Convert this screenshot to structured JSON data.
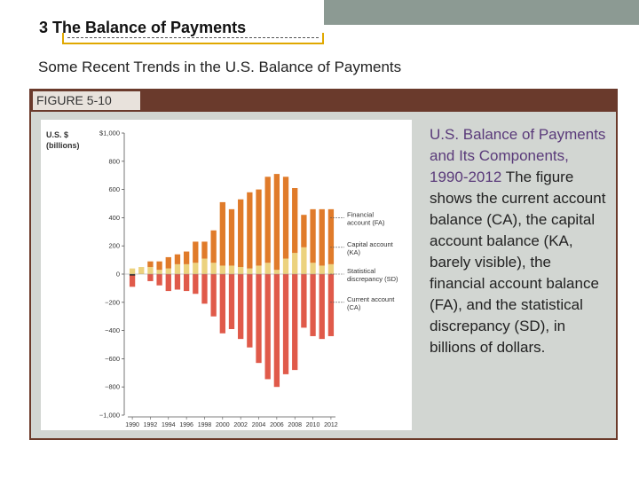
{
  "header": {
    "title": "3 The Balance of Payments",
    "subtitle": "Some Recent Trends in the U.S. Balance of Payments"
  },
  "figure": {
    "tab_label": "FIGURE 5-10",
    "caption_lead": "U.S. Balance of Payments and Its Components, 1990-2012",
    "caption_body": " The figure shows the current account balance (CA), the capital account balance (KA, barely visible), the financial account balance (FA), and the statistical discrepancy (SD), in billions of dollars."
  },
  "colors": {
    "financial": "#e07b2a",
    "capital": "#222222",
    "discrepancy": "#ecd27e",
    "current": "#e05a4a"
  },
  "chart_data": {
    "type": "bar",
    "units_label": "U.S. $ (billions)",
    "y_ticks": [
      "$1,000",
      "800",
      "600",
      "400",
      "200",
      "0",
      "−200",
      "−400",
      "−600",
      "−800",
      "−1,000"
    ],
    "x_tick_labels": [
      "1990",
      "1992",
      "1994",
      "1996",
      "1998",
      "2000",
      "2002",
      "2004",
      "2006",
      "2008",
      "2010",
      "2012"
    ],
    "ylim": [
      -1000,
      1000
    ],
    "x": [
      1990,
      1991,
      1992,
      1993,
      1994,
      1995,
      1996,
      1997,
      1998,
      1999,
      2000,
      2001,
      2002,
      2003,
      2004,
      2005,
      2006,
      2007,
      2008,
      2009,
      2010,
      2011,
      2012
    ],
    "series": [
      {
        "name": "Financial account (FA)",
        "values": [
          0,
          0,
          40,
          60,
          80,
          70,
          90,
          150,
          120,
          230,
          450,
          400,
          480,
          540,
          540,
          610,
          680,
          580,
          460,
          230,
          380,
          400,
          390
        ]
      },
      {
        "name": "Capital account (KA)",
        "values": [
          -10,
          0,
          0,
          0,
          0,
          0,
          0,
          0,
          0,
          0,
          0,
          0,
          0,
          0,
          0,
          0,
          0,
          0,
          0,
          0,
          0,
          0,
          0
        ]
      },
      {
        "name": "Statistical discrepancy (SD)",
        "values": [
          40,
          50,
          50,
          30,
          40,
          70,
          70,
          80,
          110,
          80,
          60,
          60,
          50,
          40,
          60,
          80,
          30,
          110,
          150,
          190,
          80,
          60,
          70
        ]
      },
      {
        "name": "Current account (CA)",
        "values": [
          -80,
          0,
          -50,
          -80,
          -120,
          -110,
          -120,
          -140,
          -210,
          -300,
          -420,
          -390,
          -460,
          -520,
          -630,
          -745,
          -800,
          -710,
          -680,
          -380,
          -440,
          -460,
          -440
        ]
      }
    ],
    "legend": [
      {
        "line1": "Financial",
        "line2": "account (FA)"
      },
      {
        "line1": "Capital account",
        "line2": "(KA)"
      },
      {
        "line1": "Statistical",
        "line2": "discrepancy (SD)"
      },
      {
        "line1": "Current account",
        "line2": "(CA)"
      }
    ],
    "legend_values_at": [
      400,
      190,
      0,
      -200
    ],
    "legend_placement": "right",
    "grid": false
  }
}
